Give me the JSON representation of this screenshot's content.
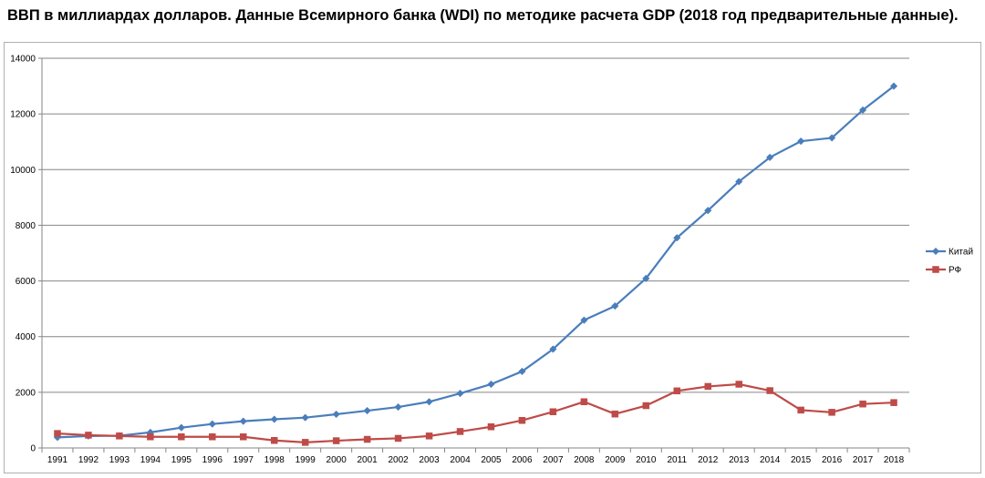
{
  "chart_data": {
    "type": "line",
    "title": "ВВП в миллиардах долларов. Данные Всемирного банка (WDI) по методике расчета GDP (2018 год  предварительные данные).",
    "xlabel": "",
    "ylabel": "",
    "ylim": [
      0,
      14000
    ],
    "yticks": [
      0,
      2000,
      4000,
      6000,
      8000,
      10000,
      12000,
      14000
    ],
    "grid": true,
    "legend_position": "right",
    "categories": [
      "1991",
      "1992",
      "1993",
      "1994",
      "1995",
      "1996",
      "1997",
      "1998",
      "1999",
      "2000",
      "2001",
      "2002",
      "2003",
      "2004",
      "2005",
      "2006",
      "2007",
      "2008",
      "2009",
      "2010",
      "2011",
      "2012",
      "2013",
      "2014",
      "2015",
      "2016",
      "2017",
      "2018"
    ],
    "series": [
      {
        "name": "Китай",
        "color": "#4a7ebb",
        "marker": "diamond",
        "values": [
          380,
          430,
          440,
          560,
          730,
          860,
          960,
          1030,
          1090,
          1210,
          1340,
          1470,
          1660,
          1960,
          2290,
          2750,
          3550,
          4590,
          5100,
          6090,
          7550,
          8530,
          9570,
          10440,
          11020,
          11140,
          12140,
          13000
        ]
      },
      {
        "name": "РФ",
        "color": "#be4b48",
        "marker": "square",
        "values": [
          520,
          460,
          430,
          400,
          400,
          400,
          400,
          270,
          200,
          260,
          310,
          345,
          430,
          590,
          760,
          990,
          1300,
          1660,
          1220,
          1520,
          2050,
          2210,
          2290,
          2060,
          1360,
          1280,
          1580,
          1630
        ]
      }
    ]
  }
}
